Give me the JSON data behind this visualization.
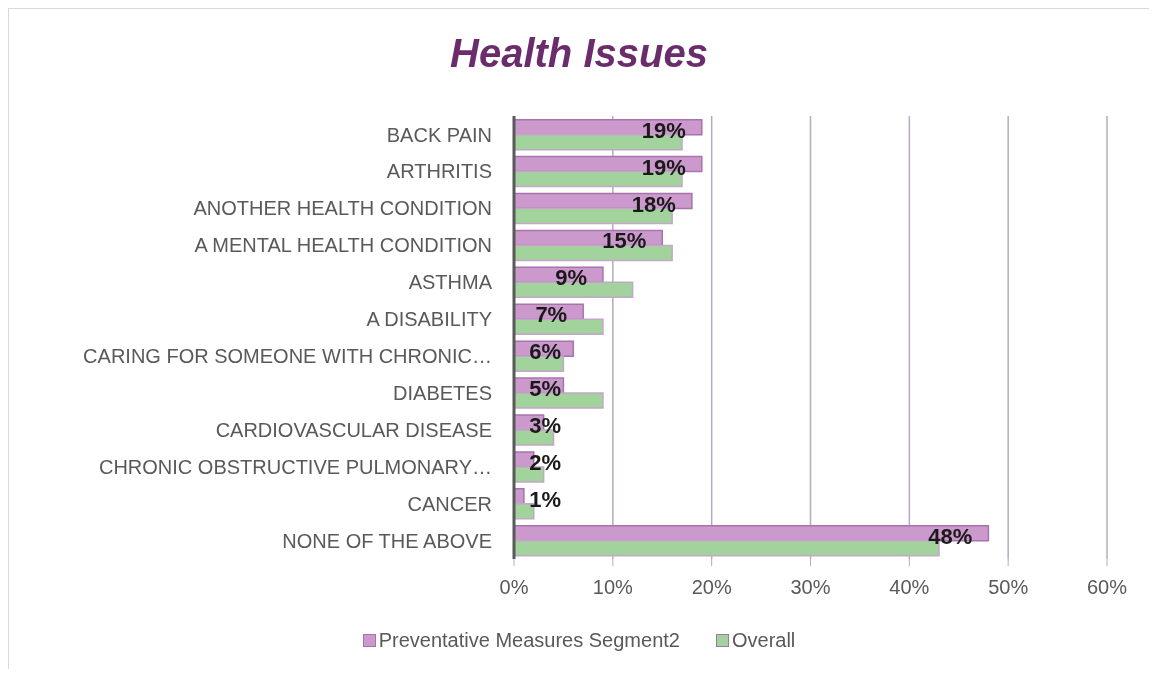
{
  "chart_data": {
    "type": "bar",
    "orientation": "horizontal",
    "title": "Health Issues",
    "categories": [
      "BACK PAIN",
      "ARTHRITIS",
      "ANOTHER HEALTH CONDITION",
      "A MENTAL HEALTH CONDITION",
      "ASTHMA",
      "A DISABILITY",
      "CARING FOR SOMEONE WITH CHRONIC…",
      "DIABETES",
      "CARDIOVASCULAR DISEASE",
      "CHRONIC OBSTRUCTIVE PULMONARY…",
      "CANCER",
      "NONE OF THE ABOVE"
    ],
    "series": [
      {
        "name": "Preventative Measures Segment2",
        "color": "#cc99cc",
        "values": [
          19,
          19,
          18,
          15,
          9,
          7,
          6,
          5,
          3,
          2,
          1,
          48
        ],
        "value_labels": [
          "19%",
          "19%",
          "18%",
          "15%",
          "9%",
          "7%",
          "6%",
          "5%",
          "3%",
          "2%",
          "1%",
          "48%"
        ]
      },
      {
        "name": "Overall",
        "color": "#a3d39c",
        "values": [
          17,
          17,
          16,
          16,
          12,
          9,
          5,
          9,
          4,
          3,
          2,
          43
        ]
      }
    ],
    "xlim": [
      0,
      60
    ],
    "xticks": [
      {
        "value": 0,
        "label": "0%"
      },
      {
        "value": 10,
        "label": "10%"
      },
      {
        "value": 20,
        "label": "20%"
      },
      {
        "value": 30,
        "label": "30%"
      },
      {
        "value": 40,
        "label": "40%"
      },
      {
        "value": 50,
        "label": "50%"
      },
      {
        "value": 60,
        "label": "60%"
      }
    ],
    "grid": "x",
    "legend": "bottom"
  }
}
